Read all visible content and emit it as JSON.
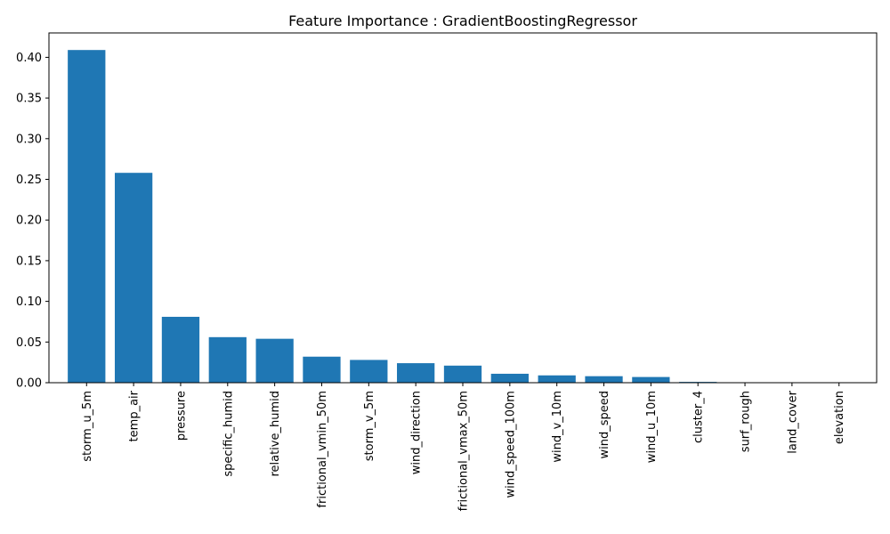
{
  "chart_data": {
    "type": "bar",
    "title": "Feature Importance : GradientBoostingRegressor",
    "xlabel": "",
    "ylabel": "",
    "categories": [
      "storm_u_5m",
      "temp_air",
      "pressure",
      "specific_humid",
      "relative_humid",
      "frictional_vmin_50m",
      "storm_v_5m",
      "wind_direction",
      "frictional_vmax_50m",
      "wind_speed_100m",
      "wind_v_10m",
      "wind_speed",
      "wind_u_10m",
      "cluster_4",
      "surf_rough",
      "land_cover",
      "elevation"
    ],
    "values": [
      0.409,
      0.258,
      0.081,
      0.056,
      0.054,
      0.032,
      0.028,
      0.024,
      0.021,
      0.011,
      0.009,
      0.008,
      0.007,
      0.001,
      0.0,
      0.0,
      0.0
    ],
    "ylim": [
      0,
      0.43
    ],
    "yticks": [
      "0.00",
      "0.05",
      "0.10",
      "0.15",
      "0.20",
      "0.25",
      "0.30",
      "0.35",
      "0.40"
    ],
    "bar_color": "#1f77b4",
    "grid": false,
    "legend": "none"
  }
}
